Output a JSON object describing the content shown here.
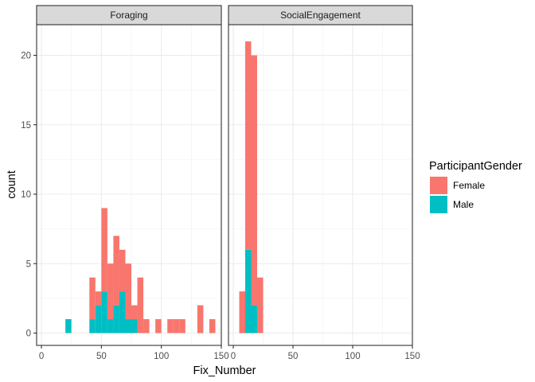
{
  "chart_data": {
    "type": "histogram",
    "xlabel": "Fix_Number",
    "ylabel": "count",
    "xlim": [
      -4,
      150
    ],
    "ylim": [
      0,
      22
    ],
    "x_ticks": [
      0,
      50,
      100,
      150
    ],
    "y_ticks": [
      0,
      5,
      10,
      15,
      20
    ],
    "bin_width": 5,
    "stacked": true,
    "grid": true,
    "colors": {
      "Female": "#F8766D",
      "Male": "#00BFC4"
    },
    "legend": {
      "title": "ParticipantGender",
      "placement": "right",
      "entries": [
        "Female",
        "Male"
      ]
    },
    "facets": [
      {
        "label": "Foraging",
        "bins": [
          {
            "x": 22.5,
            "female": 0,
            "male": 1
          },
          {
            "x": 42.5,
            "female": 3,
            "male": 1
          },
          {
            "x": 47.5,
            "female": 1,
            "male": 2
          },
          {
            "x": 52.5,
            "female": 6,
            "male": 3
          },
          {
            "x": 57.5,
            "female": 4,
            "male": 1
          },
          {
            "x": 62.5,
            "female": 5,
            "male": 2
          },
          {
            "x": 67.5,
            "female": 3,
            "male": 3
          },
          {
            "x": 72.5,
            "female": 4,
            "male": 1
          },
          {
            "x": 77.5,
            "female": 1,
            "male": 1
          },
          {
            "x": 82.5,
            "female": 4,
            "male": 0
          },
          {
            "x": 87.5,
            "female": 1,
            "male": 0
          },
          {
            "x": 97.5,
            "female": 1,
            "male": 0
          },
          {
            "x": 107.5,
            "female": 1,
            "male": 0
          },
          {
            "x": 112.5,
            "female": 1,
            "male": 0
          },
          {
            "x": 117.5,
            "female": 1,
            "male": 0
          },
          {
            "x": 132.5,
            "female": 2,
            "male": 0
          },
          {
            "x": 142.5,
            "female": 1,
            "male": 0
          }
        ]
      },
      {
        "label": "SocialEngagement",
        "bins": [
          {
            "x": 7.5,
            "female": 3,
            "male": 0
          },
          {
            "x": 12.5,
            "female": 15,
            "male": 6
          },
          {
            "x": 17.5,
            "female": 18,
            "male": 2
          },
          {
            "x": 22.5,
            "female": 4,
            "male": 0
          }
        ]
      }
    ]
  }
}
